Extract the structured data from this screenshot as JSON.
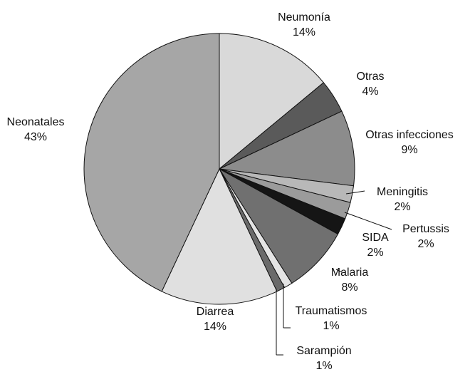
{
  "chart_data": {
    "type": "pie",
    "categories": [
      "Neumonía",
      "Otras",
      "Otras infecciones",
      "Meningitis",
      "Pertussis",
      "SIDA",
      "Malaria",
      "Traumatismos",
      "Sarampión",
      "Diarrea",
      "Neonatales"
    ],
    "values": [
      14,
      4,
      9,
      2,
      2,
      2,
      8,
      1,
      1,
      14,
      43
    ],
    "value_labels": [
      "14%",
      "4%",
      "9%",
      "2%",
      "2%",
      "2%",
      "8%",
      "1%",
      "1%",
      "14%",
      "43%"
    ],
    "colors": [
      "#d9d9d9",
      "#5a5a5a",
      "#8c8c8c",
      "#b8b8b8",
      "#9b9b9b",
      "#151515",
      "#707070",
      "#e4e4e4",
      "#6a6a6a",
      "#e0e0e0",
      "#a6a6a6"
    ]
  }
}
